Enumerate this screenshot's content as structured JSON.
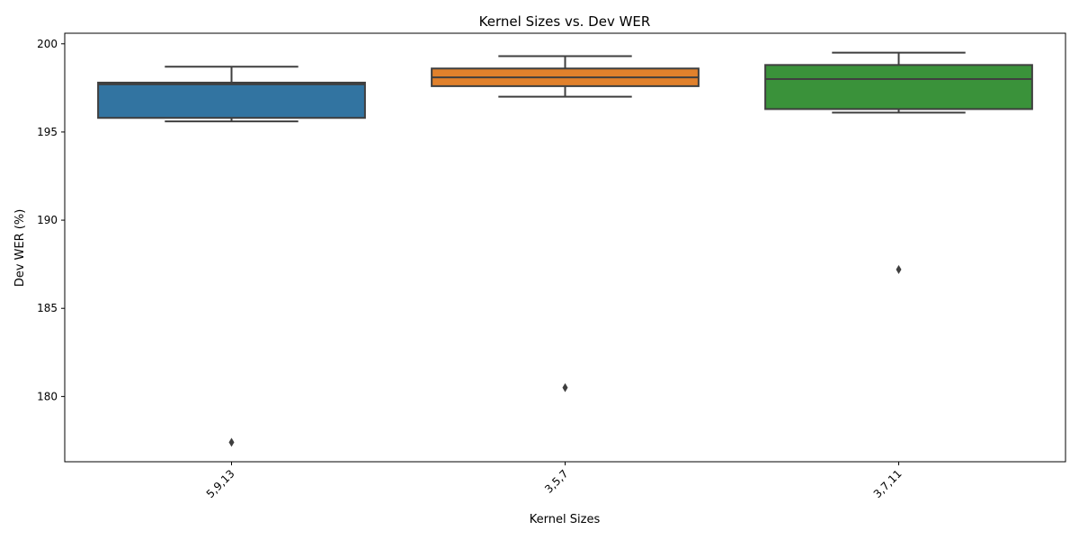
{
  "chart_data": {
    "type": "box",
    "title": "Kernel Sizes vs. Dev WER",
    "xlabel": "Kernel Sizes",
    "ylabel": "Dev WER (%)",
    "ylim": [
      176.3,
      200.6
    ],
    "yticks": [
      180,
      185,
      190,
      195,
      200
    ],
    "grid": false,
    "legend": "none",
    "categories": [
      "5,9,13",
      "3,5,7",
      "3,7,11"
    ],
    "boxes": [
      {
        "category": "5,9,13",
        "whisker_low": 195.6,
        "q1": 195.8,
        "median": 197.7,
        "q3": 197.8,
        "whisker_high": 198.7,
        "outliers": [
          177.4
        ],
        "color": "#3274a1"
      },
      {
        "category": "3,5,7",
        "whisker_low": 197.0,
        "q1": 197.6,
        "median": 198.1,
        "q3": 198.6,
        "whisker_high": 199.3,
        "outliers": [
          180.5
        ],
        "color": "#e1812c"
      },
      {
        "category": "3,7,11",
        "whisker_low": 196.1,
        "q1": 196.3,
        "median": 198.0,
        "q3": 198.8,
        "whisker_high": 199.5,
        "outliers": [
          187.2
        ],
        "color": "#3a923a"
      }
    ]
  }
}
